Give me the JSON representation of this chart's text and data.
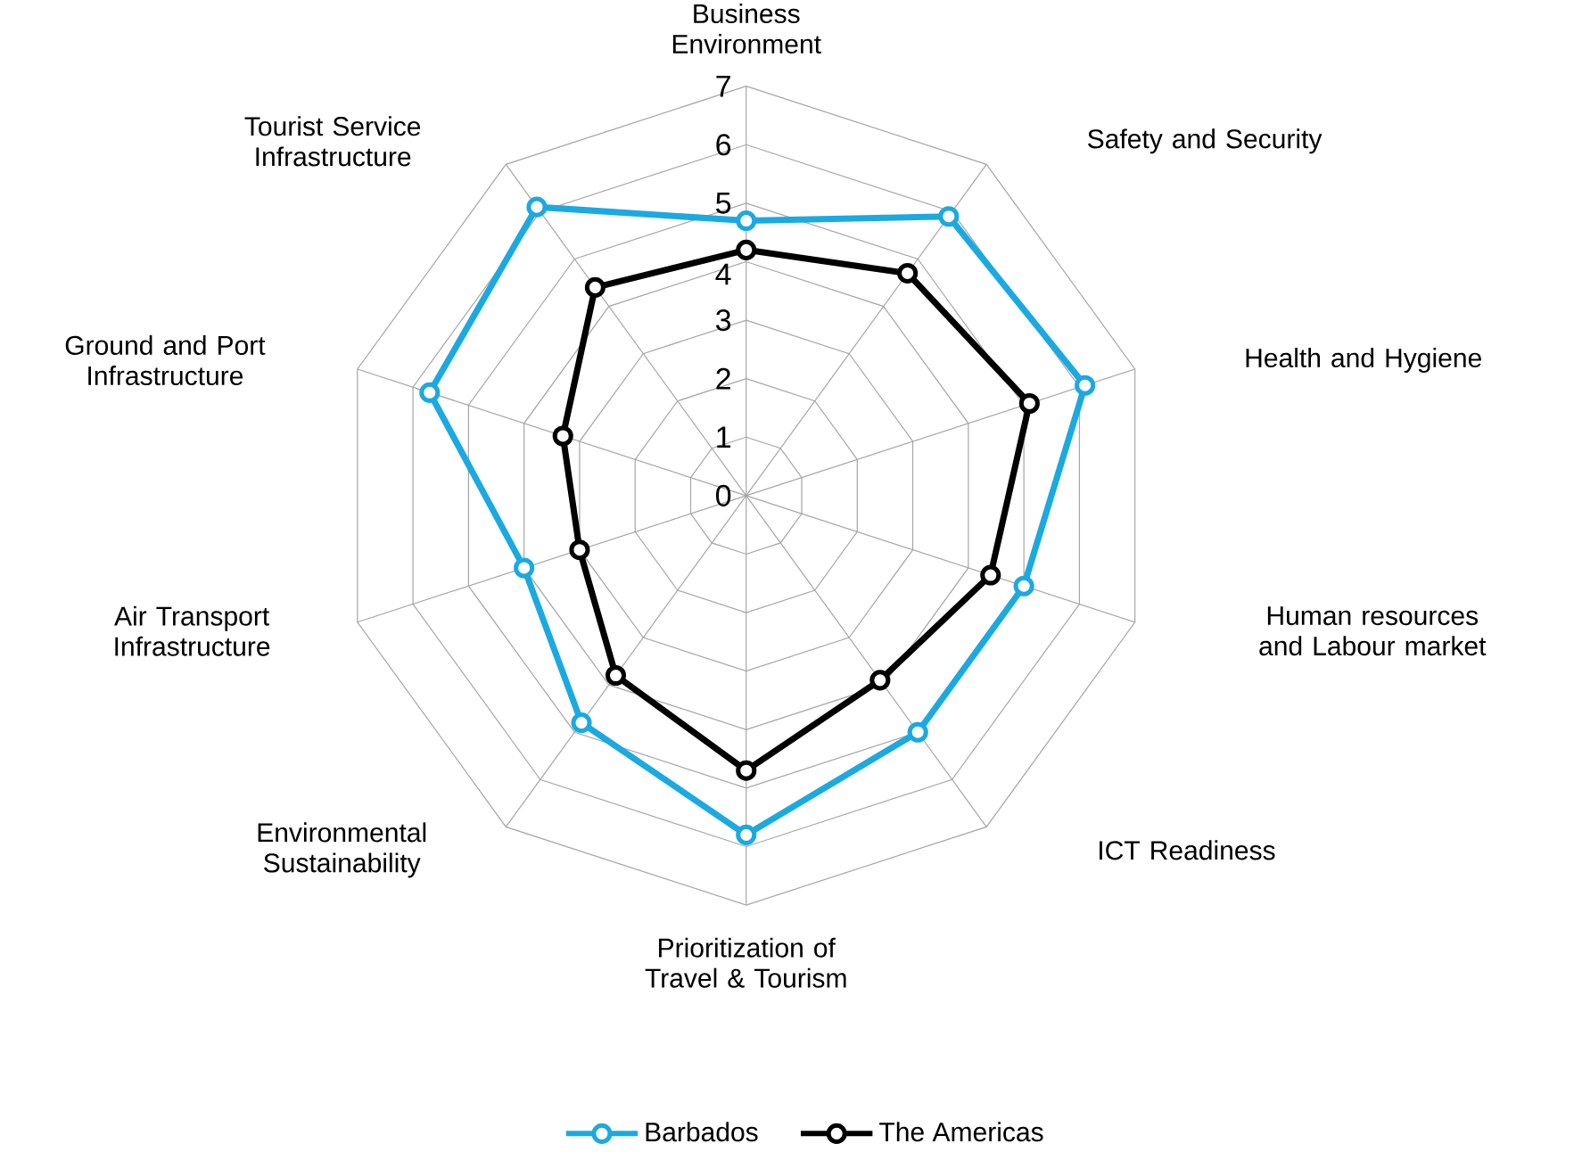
{
  "chart_data": {
    "type": "radar",
    "categories": [
      "Business Environment",
      "Safety and Security",
      "Health and Hygiene",
      "Human resources and Labour market",
      "ICT Readiness",
      "Prioritization of Travel & Tourism",
      "Environmental Sustainability",
      "Air Transport Infrastructure",
      "Ground and Port Infrastructure",
      "Tourist Service Infrastructure"
    ],
    "series": [
      {
        "name": "Barbados",
        "color": "#1ba9e1",
        "values": [
          4.7,
          5.9,
          6.1,
          5.0,
          5.0,
          5.8,
          4.8,
          4.0,
          5.7,
          6.1
        ]
      },
      {
        "name": "The Americas",
        "color": "#000000",
        "values": [
          4.2,
          4.7,
          5.1,
          4.4,
          3.9,
          4.7,
          3.8,
          3.0,
          3.3,
          4.4
        ]
      }
    ],
    "ylim": [
      0,
      7
    ],
    "yticks": [
      0,
      1,
      2,
      3,
      4,
      5,
      6,
      7
    ],
    "grid": true,
    "legend": "bottom",
    "marker": "circle",
    "line_style": "solid"
  }
}
